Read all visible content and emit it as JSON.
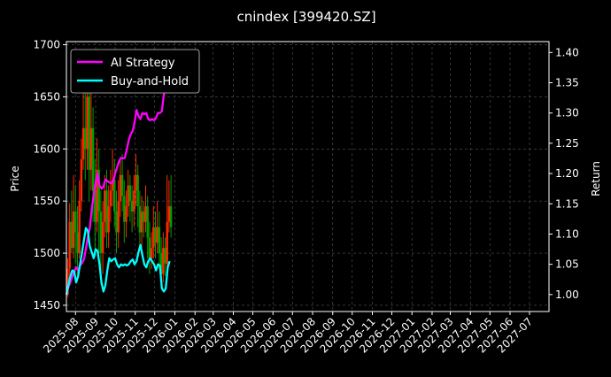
{
  "colors": {
    "background": "#000000",
    "text": "#ffffff",
    "grid": "#555555",
    "ai_strategy": "#ff00ff",
    "buy_and_hold": "#00ffff",
    "candle_up": "#ff2a00",
    "candle_down": "#00a000"
  },
  "chart_data": {
    "type": "line",
    "title": "cnindex [399420.SZ]",
    "ylabel_left": "Price",
    "ylabel_right": "Return",
    "grid": true,
    "legend_position": "top-left",
    "x_range": [
      "2025-07-18",
      "2027-07-31"
    ],
    "x_ticks": [
      "2025-08",
      "2025-09",
      "2025-10",
      "2025-11",
      "2025-12",
      "2026-01",
      "2026-02",
      "2026-03",
      "2026-04",
      "2026-05",
      "2026-06",
      "2026-07",
      "2026-08",
      "2026-09",
      "2026-10",
      "2026-11",
      "2026-12",
      "2027-01",
      "2027-02",
      "2027-03",
      "2027-04",
      "2027-05",
      "2027-06",
      "2027-07"
    ],
    "y_left_range": [
      1444,
      1703
    ],
    "y_left_ticks": [
      "1450",
      "1500",
      "1550",
      "1600",
      "1650",
      "1700"
    ],
    "y_right_range": [
      0.972,
      1.418
    ],
    "y_right_ticks": [
      "1.00",
      "1.05",
      "1.10",
      "1.15",
      "1.20",
      "1.25",
      "1.30",
      "1.35",
      "1.40"
    ],
    "candles": [
      {
        "date": "2025-07-20",
        "open": 1460,
        "close": 1485,
        "high": 1495,
        "low": 1458
      },
      {
        "date": "2025-07-23",
        "open": 1485,
        "close": 1530,
        "high": 1548,
        "low": 1478
      },
      {
        "date": "2025-07-26",
        "open": 1530,
        "close": 1505,
        "high": 1560,
        "low": 1500
      },
      {
        "date": "2025-07-29",
        "open": 1505,
        "close": 1540,
        "high": 1575,
        "low": 1495
      },
      {
        "date": "2025-08-01",
        "open": 1540,
        "close": 1520,
        "high": 1565,
        "low": 1490
      },
      {
        "date": "2025-08-04",
        "open": 1520,
        "close": 1500,
        "high": 1545,
        "low": 1480
      },
      {
        "date": "2025-08-07",
        "open": 1500,
        "close": 1550,
        "high": 1570,
        "low": 1495
      },
      {
        "date": "2025-08-10",
        "open": 1550,
        "close": 1590,
        "high": 1610,
        "low": 1540
      },
      {
        "date": "2025-08-13",
        "open": 1590,
        "close": 1620,
        "high": 1660,
        "low": 1580
      },
      {
        "date": "2025-08-16",
        "open": 1620,
        "close": 1600,
        "high": 1690,
        "low": 1570
      },
      {
        "date": "2025-08-19",
        "open": 1600,
        "close": 1650,
        "high": 1680,
        "low": 1580
      },
      {
        "date": "2025-08-22",
        "open": 1650,
        "close": 1580,
        "high": 1670,
        "low": 1550
      },
      {
        "date": "2025-08-25",
        "open": 1580,
        "close": 1620,
        "high": 1660,
        "low": 1560
      },
      {
        "date": "2025-08-28",
        "open": 1620,
        "close": 1560,
        "high": 1640,
        "low": 1530
      },
      {
        "date": "2025-08-31",
        "open": 1560,
        "close": 1530,
        "high": 1590,
        "low": 1500
      },
      {
        "date": "2025-09-03",
        "open": 1530,
        "close": 1580,
        "high": 1610,
        "low": 1520
      },
      {
        "date": "2025-09-06",
        "open": 1580,
        "close": 1540,
        "high": 1600,
        "low": 1500
      },
      {
        "date": "2025-09-09",
        "open": 1540,
        "close": 1500,
        "high": 1560,
        "low": 1470
      },
      {
        "date": "2025-09-12",
        "open": 1500,
        "close": 1530,
        "high": 1550,
        "low": 1480
      },
      {
        "date": "2025-09-15",
        "open": 1530,
        "close": 1560,
        "high": 1575,
        "low": 1515
      },
      {
        "date": "2025-09-18",
        "open": 1560,
        "close": 1520,
        "high": 1580,
        "low": 1505
      },
      {
        "date": "2025-09-21",
        "open": 1520,
        "close": 1545,
        "high": 1565,
        "low": 1505
      },
      {
        "date": "2025-09-24",
        "open": 1545,
        "close": 1560,
        "high": 1580,
        "low": 1530
      },
      {
        "date": "2025-09-27",
        "open": 1560,
        "close": 1570,
        "high": 1600,
        "low": 1545
      },
      {
        "date": "2025-09-30",
        "open": 1570,
        "close": 1540,
        "high": 1590,
        "low": 1525
      },
      {
        "date": "2025-10-03",
        "open": 1540,
        "close": 1520,
        "high": 1560,
        "low": 1500
      },
      {
        "date": "2025-10-06",
        "open": 1520,
        "close": 1550,
        "high": 1570,
        "low": 1505
      },
      {
        "date": "2025-10-09",
        "open": 1550,
        "close": 1575,
        "high": 1590,
        "low": 1535
      },
      {
        "date": "2025-10-12",
        "open": 1575,
        "close": 1555,
        "high": 1595,
        "low": 1540
      },
      {
        "date": "2025-10-15",
        "open": 1555,
        "close": 1530,
        "high": 1570,
        "low": 1510
      },
      {
        "date": "2025-10-18",
        "open": 1530,
        "close": 1545,
        "high": 1560,
        "low": 1515
      },
      {
        "date": "2025-10-21",
        "open": 1545,
        "close": 1565,
        "high": 1580,
        "low": 1535
      },
      {
        "date": "2025-10-24",
        "open": 1565,
        "close": 1550,
        "high": 1575,
        "low": 1530
      },
      {
        "date": "2025-10-27",
        "open": 1550,
        "close": 1540,
        "high": 1565,
        "low": 1520
      },
      {
        "date": "2025-10-30",
        "open": 1540,
        "close": 1560,
        "high": 1575,
        "low": 1525
      },
      {
        "date": "2025-11-02",
        "open": 1560,
        "close": 1575,
        "high": 1595,
        "low": 1545
      },
      {
        "date": "2025-11-05",
        "open": 1575,
        "close": 1545,
        "high": 1585,
        "low": 1525
      },
      {
        "date": "2025-11-08",
        "open": 1545,
        "close": 1520,
        "high": 1560,
        "low": 1505
      },
      {
        "date": "2025-11-11",
        "open": 1520,
        "close": 1540,
        "high": 1555,
        "low": 1505
      },
      {
        "date": "2025-11-14",
        "open": 1540,
        "close": 1530,
        "high": 1550,
        "low": 1515
      },
      {
        "date": "2025-11-17",
        "open": 1530,
        "close": 1545,
        "high": 1565,
        "low": 1520
      },
      {
        "date": "2025-11-20",
        "open": 1545,
        "close": 1515,
        "high": 1555,
        "low": 1495
      },
      {
        "date": "2025-11-23",
        "open": 1515,
        "close": 1495,
        "high": 1530,
        "low": 1480
      },
      {
        "date": "2025-11-26",
        "open": 1495,
        "close": 1505,
        "high": 1520,
        "low": 1485
      },
      {
        "date": "2025-11-29",
        "open": 1505,
        "close": 1525,
        "high": 1545,
        "low": 1495
      },
      {
        "date": "2025-12-02",
        "open": 1525,
        "close": 1510,
        "high": 1540,
        "low": 1495
      },
      {
        "date": "2025-12-05",
        "open": 1510,
        "close": 1525,
        "high": 1550,
        "low": 1500
      },
      {
        "date": "2025-12-08",
        "open": 1525,
        "close": 1500,
        "high": 1540,
        "low": 1485
      },
      {
        "date": "2025-12-11",
        "open": 1500,
        "close": 1480,
        "high": 1515,
        "low": 1470
      },
      {
        "date": "2025-12-14",
        "open": 1480,
        "close": 1505,
        "high": 1520,
        "low": 1472
      },
      {
        "date": "2025-12-17",
        "open": 1505,
        "close": 1490,
        "high": 1515,
        "low": 1478
      },
      {
        "date": "2025-12-20",
        "open": 1490,
        "close": 1530,
        "high": 1575,
        "low": 1480
      },
      {
        "date": "2025-12-23",
        "open": 1530,
        "close": 1545,
        "high": 1570,
        "low": 1520
      },
      {
        "date": "2025-12-26",
        "open": 1545,
        "close": 1525,
        "high": 1575,
        "low": 1515
      }
    ],
    "series": [
      {
        "name": "AI Strategy",
        "axis": "right",
        "color": "#ff00ff",
        "points": [
          [
            "2025-07-18",
            1.0
          ],
          [
            "2025-07-21",
            1.012
          ],
          [
            "2025-07-24",
            1.02
          ],
          [
            "2025-07-27",
            1.03
          ],
          [
            "2025-07-30",
            1.038
          ],
          [
            "2025-08-02",
            1.045
          ],
          [
            "2025-08-05",
            1.04
          ],
          [
            "2025-08-08",
            1.048
          ],
          [
            "2025-08-11",
            1.052
          ],
          [
            "2025-08-14",
            1.058
          ],
          [
            "2025-08-17",
            1.075
          ],
          [
            "2025-08-20",
            1.095
          ],
          [
            "2025-08-23",
            1.11
          ],
          [
            "2025-08-26",
            1.14
          ],
          [
            "2025-08-29",
            1.165
          ],
          [
            "2025-09-01",
            1.185
          ],
          [
            "2025-09-04",
            1.2
          ],
          [
            "2025-09-07",
            1.18
          ],
          [
            "2025-09-10",
            1.175
          ],
          [
            "2025-09-13",
            1.178
          ],
          [
            "2025-09-16",
            1.19
          ],
          [
            "2025-09-19",
            1.188
          ],
          [
            "2025-09-22",
            1.185
          ],
          [
            "2025-09-25",
            1.184
          ],
          [
            "2025-09-28",
            1.186
          ],
          [
            "2025-10-01",
            1.2
          ],
          [
            "2025-10-04",
            1.21
          ],
          [
            "2025-10-07",
            1.22
          ],
          [
            "2025-10-10",
            1.226
          ],
          [
            "2025-10-13",
            1.225
          ],
          [
            "2025-10-16",
            1.226
          ],
          [
            "2025-10-19",
            1.24
          ],
          [
            "2025-10-22",
            1.255
          ],
          [
            "2025-10-25",
            1.265
          ],
          [
            "2025-10-28",
            1.27
          ],
          [
            "2025-10-31",
            1.285
          ],
          [
            "2025-11-03",
            1.305
          ],
          [
            "2025-11-06",
            1.295
          ],
          [
            "2025-11-09",
            1.29
          ],
          [
            "2025-11-12",
            1.3
          ],
          [
            "2025-11-15",
            1.298
          ],
          [
            "2025-11-18",
            1.3
          ],
          [
            "2025-11-21",
            1.29
          ],
          [
            "2025-11-24",
            1.288
          ],
          [
            "2025-11-27",
            1.29
          ],
          [
            "2025-11-30",
            1.288
          ],
          [
            "2025-12-03",
            1.292
          ],
          [
            "2025-12-06",
            1.3
          ],
          [
            "2025-12-09",
            1.3
          ],
          [
            "2025-12-12",
            1.303
          ],
          [
            "2025-12-15",
            1.33
          ],
          [
            "2025-12-18",
            1.36
          ],
          [
            "2025-12-21",
            1.39
          ],
          [
            "2025-12-24",
            1.4
          ]
        ]
      },
      {
        "name": "Buy-and-Hold",
        "axis": "right",
        "color": "#00ffff",
        "points": [
          [
            "2025-07-18",
            1.0
          ],
          [
            "2025-07-21",
            1.015
          ],
          [
            "2025-07-24",
            1.03
          ],
          [
            "2025-07-27",
            1.04
          ],
          [
            "2025-07-30",
            1.038
          ],
          [
            "2025-08-02",
            1.02
          ],
          [
            "2025-08-05",
            1.03
          ],
          [
            "2025-08-08",
            1.05
          ],
          [
            "2025-08-11",
            1.07
          ],
          [
            "2025-08-14",
            1.09
          ],
          [
            "2025-08-17",
            1.11
          ],
          [
            "2025-08-20",
            1.105
          ],
          [
            "2025-08-23",
            1.08
          ],
          [
            "2025-08-26",
            1.07
          ],
          [
            "2025-08-29",
            1.06
          ],
          [
            "2025-09-01",
            1.075
          ],
          [
            "2025-09-04",
            1.072
          ],
          [
            "2025-09-07",
            1.05
          ],
          [
            "2025-09-10",
            1.02
          ],
          [
            "2025-09-13",
            1.005
          ],
          [
            "2025-09-16",
            1.015
          ],
          [
            "2025-09-19",
            1.04
          ],
          [
            "2025-09-22",
            1.06
          ],
          [
            "2025-09-25",
            1.055
          ],
          [
            "2025-09-28",
            1.058
          ],
          [
            "2025-10-01",
            1.06
          ],
          [
            "2025-10-04",
            1.05
          ],
          [
            "2025-10-07",
            1.045
          ],
          [
            "2025-10-10",
            1.05
          ],
          [
            "2025-10-13",
            1.048
          ],
          [
            "2025-10-16",
            1.05
          ],
          [
            "2025-10-19",
            1.048
          ],
          [
            "2025-10-22",
            1.05
          ],
          [
            "2025-10-25",
            1.055
          ],
          [
            "2025-10-28",
            1.058
          ],
          [
            "2025-10-31",
            1.05
          ],
          [
            "2025-11-03",
            1.055
          ],
          [
            "2025-11-06",
            1.07
          ],
          [
            "2025-11-09",
            1.082
          ],
          [
            "2025-11-12",
            1.065
          ],
          [
            "2025-11-15",
            1.05
          ],
          [
            "2025-11-18",
            1.045
          ],
          [
            "2025-11-21",
            1.055
          ],
          [
            "2025-11-24",
            1.06
          ],
          [
            "2025-11-27",
            1.055
          ],
          [
            "2025-11-30",
            1.05
          ],
          [
            "2025-12-03",
            1.04
          ],
          [
            "2025-12-06",
            1.05
          ],
          [
            "2025-12-09",
            1.048
          ],
          [
            "2025-12-12",
            1.01
          ],
          [
            "2025-12-15",
            1.005
          ],
          [
            "2025-12-18",
            1.01
          ],
          [
            "2025-12-21",
            1.045
          ],
          [
            "2025-12-24",
            1.055
          ]
        ]
      }
    ]
  }
}
